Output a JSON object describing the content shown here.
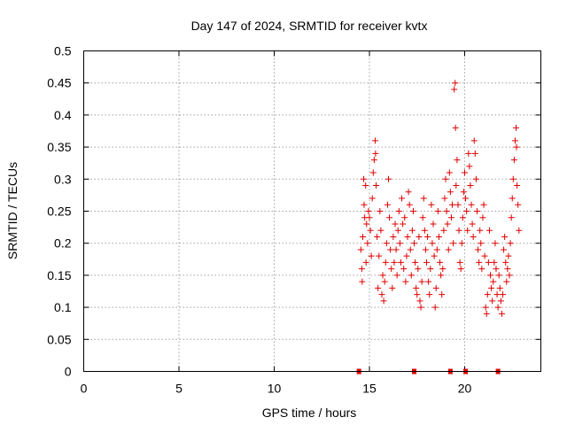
{
  "colors": {
    "series": "#e00000",
    "grid": "#a0a0a0",
    "axis": "#000000",
    "background": "#ffffff"
  },
  "chart_data": {
    "type": "scatter",
    "title": "Day 147 of 2024, SRMTID for receiver kvtx",
    "xlabel": "GPS time / hours",
    "ylabel": "SRMTID / TECUs",
    "xlim": [
      0,
      24
    ],
    "ylim": [
      0,
      0.5
    ],
    "x_ticks": [
      0,
      5,
      10,
      15,
      20
    ],
    "x_tick_labels": [
      "0",
      "5",
      "10",
      "15",
      "20"
    ],
    "y_ticks": [
      0,
      0.05,
      0.1,
      0.15,
      0.2,
      0.25,
      0.3,
      0.35,
      0.4,
      0.45,
      0.5
    ],
    "y_tick_labels": [
      "0",
      "0.05",
      "0.1",
      "0.15",
      "0.2",
      "0.25",
      "0.3",
      "0.35",
      "0.4",
      "0.45",
      "0.5"
    ],
    "grid": true,
    "legend": "none",
    "marker": "plus",
    "series": [
      {
        "points": [
          [
            14.55,
            0.19
          ],
          [
            14.6,
            0.16
          ],
          [
            14.62,
            0.14
          ],
          [
            14.65,
            0.21
          ],
          [
            14.7,
            0.3
          ],
          [
            14.72,
            0.26
          ],
          [
            14.75,
            0.24
          ],
          [
            14.8,
            0.29
          ],
          [
            14.82,
            0.17
          ],
          [
            14.85,
            0.23
          ],
          [
            14.9,
            0.2
          ],
          [
            14.95,
            0.25
          ],
          [
            15.0,
            0.24
          ],
          [
            15.05,
            0.22
          ],
          [
            15.1,
            0.18
          ],
          [
            15.15,
            0.27
          ],
          [
            15.2,
            0.31
          ],
          [
            15.25,
            0.33
          ],
          [
            15.3,
            0.36
          ],
          [
            15.32,
            0.34
          ],
          [
            15.35,
            0.29
          ],
          [
            15.4,
            0.21
          ],
          [
            15.45,
            0.13
          ],
          [
            15.5,
            0.18
          ],
          [
            15.55,
            0.25
          ],
          [
            15.6,
            0.22
          ],
          [
            15.65,
            0.12
          ],
          [
            15.7,
            0.15
          ],
          [
            15.75,
            0.11
          ],
          [
            15.8,
            0.14
          ],
          [
            15.85,
            0.17
          ],
          [
            15.9,
            0.2
          ],
          [
            15.95,
            0.26
          ],
          [
            16.0,
            0.3
          ],
          [
            16.05,
            0.24
          ],
          [
            16.1,
            0.19
          ],
          [
            16.15,
            0.16
          ],
          [
            16.2,
            0.13
          ],
          [
            16.25,
            0.21
          ],
          [
            16.3,
            0.17
          ],
          [
            16.35,
            0.23
          ],
          [
            16.4,
            0.19
          ],
          [
            16.45,
            0.15
          ],
          [
            16.5,
            0.22
          ],
          [
            16.55,
            0.25
          ],
          [
            16.6,
            0.2
          ],
          [
            16.65,
            0.17
          ],
          [
            16.7,
            0.27
          ],
          [
            16.75,
            0.23
          ],
          [
            16.8,
            0.16
          ],
          [
            16.85,
            0.24
          ],
          [
            16.9,
            0.14
          ],
          [
            16.95,
            0.18
          ],
          [
            17.0,
            0.21
          ],
          [
            17.05,
            0.28
          ],
          [
            17.1,
            0.26
          ],
          [
            17.15,
            0.19
          ],
          [
            17.2,
            0.15
          ],
          [
            17.25,
            0.22
          ],
          [
            17.3,
            0.25
          ],
          [
            17.35,
            0.2
          ],
          [
            17.4,
            0.17
          ],
          [
            17.45,
            0.13
          ],
          [
            17.5,
            0.12
          ],
          [
            17.55,
            0.16
          ],
          [
            17.6,
            0.21
          ],
          [
            17.65,
            0.11
          ],
          [
            17.7,
            0.1
          ],
          [
            17.75,
            0.14
          ],
          [
            17.8,
            0.24
          ],
          [
            17.85,
            0.27
          ],
          [
            17.9,
            0.22
          ],
          [
            17.95,
            0.19
          ],
          [
            18.0,
            0.17
          ],
          [
            18.05,
            0.21
          ],
          [
            18.1,
            0.14
          ],
          [
            18.15,
            0.12
          ],
          [
            18.2,
            0.16
          ],
          [
            18.25,
            0.26
          ],
          [
            18.3,
            0.2
          ],
          [
            18.35,
            0.23
          ],
          [
            18.4,
            0.18
          ],
          [
            18.45,
            0.1
          ],
          [
            18.5,
            0.13
          ],
          [
            18.55,
            0.19
          ],
          [
            18.6,
            0.25
          ],
          [
            18.65,
            0.21
          ],
          [
            18.7,
            0.17
          ],
          [
            18.75,
            0.15
          ],
          [
            18.8,
            0.12
          ],
          [
            18.85,
            0.16
          ],
          [
            18.9,
            0.22
          ],
          [
            18.95,
            0.27
          ],
          [
            19.0,
            0.3
          ],
          [
            19.05,
            0.25
          ],
          [
            19.1,
            0.23
          ],
          [
            19.15,
            0.19
          ],
          [
            19.2,
            0.31
          ],
          [
            19.25,
            0.28
          ],
          [
            19.3,
            0.24
          ],
          [
            19.35,
            0.26
          ],
          [
            19.4,
            0.2
          ],
          [
            19.45,
            0.44
          ],
          [
            19.5,
            0.45
          ],
          [
            19.52,
            0.38
          ],
          [
            19.55,
            0.29
          ],
          [
            19.6,
            0.33
          ],
          [
            19.65,
            0.26
          ],
          [
            19.7,
            0.22
          ],
          [
            19.75,
            0.17
          ],
          [
            19.8,
            0.16
          ],
          [
            19.85,
            0.2
          ],
          [
            19.9,
            0.24
          ],
          [
            19.95,
            0.28
          ],
          [
            20.0,
            0.31
          ],
          [
            20.05,
            0.27
          ],
          [
            20.1,
            0.25
          ],
          [
            20.15,
            0.22
          ],
          [
            20.2,
            0.34
          ],
          [
            20.25,
            0.32
          ],
          [
            20.3,
            0.29
          ],
          [
            20.35,
            0.26
          ],
          [
            20.4,
            0.23
          ],
          [
            20.45,
            0.21
          ],
          [
            20.5,
            0.36
          ],
          [
            20.55,
            0.34
          ],
          [
            20.6,
            0.3
          ],
          [
            20.65,
            0.25
          ],
          [
            20.7,
            0.19
          ],
          [
            20.75,
            0.17
          ],
          [
            20.8,
            0.22
          ],
          [
            20.85,
            0.2
          ],
          [
            20.9,
            0.16
          ],
          [
            20.95,
            0.24
          ],
          [
            21.0,
            0.26
          ],
          [
            21.05,
            0.18
          ],
          [
            21.1,
            0.1
          ],
          [
            21.15,
            0.09
          ],
          [
            21.2,
            0.12
          ],
          [
            21.25,
            0.17
          ],
          [
            21.3,
            0.22
          ],
          [
            21.35,
            0.15
          ],
          [
            21.4,
            0.13
          ],
          [
            21.45,
            0.11
          ],
          [
            21.5,
            0.14
          ],
          [
            21.55,
            0.17
          ],
          [
            21.6,
            0.2
          ],
          [
            21.65,
            0.16
          ],
          [
            21.7,
            0.12
          ],
          [
            21.75,
            0.1
          ],
          [
            21.8,
            0.15
          ],
          [
            21.85,
            0.13
          ],
          [
            21.9,
            0.11
          ],
          [
            21.95,
            0.09
          ],
          [
            22.0,
            0.12
          ],
          [
            22.05,
            0.19
          ],
          [
            22.1,
            0.21
          ],
          [
            22.15,
            0.17
          ],
          [
            22.2,
            0.14
          ],
          [
            22.25,
            0.16
          ],
          [
            22.3,
            0.18
          ],
          [
            22.35,
            0.15
          ],
          [
            22.4,
            0.2
          ],
          [
            22.45,
            0.24
          ],
          [
            22.5,
            0.27
          ],
          [
            22.55,
            0.3
          ],
          [
            22.6,
            0.33
          ],
          [
            22.65,
            0.36
          ],
          [
            22.7,
            0.38
          ],
          [
            22.72,
            0.35
          ],
          [
            22.75,
            0.29
          ],
          [
            22.8,
            0.26
          ],
          [
            22.85,
            0.22
          ]
        ]
      }
    ],
    "zero_markers_x": [
      14.45,
      17.35,
      19.25,
      20.05,
      21.75
    ]
  }
}
